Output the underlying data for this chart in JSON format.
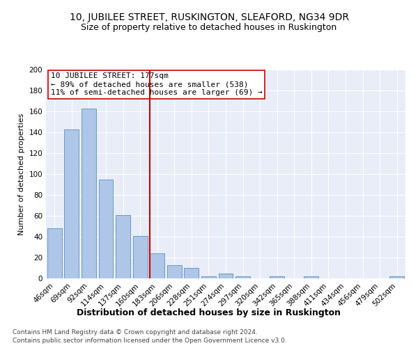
{
  "title": "10, JUBILEE STREET, RUSKINGTON, SLEAFORD, NG34 9DR",
  "subtitle": "Size of property relative to detached houses in Ruskington",
  "xlabel": "Distribution of detached houses by size in Ruskington",
  "ylabel": "Number of detached properties",
  "categories": [
    "46sqm",
    "69sqm",
    "92sqm",
    "114sqm",
    "137sqm",
    "160sqm",
    "183sqm",
    "206sqm",
    "228sqm",
    "251sqm",
    "274sqm",
    "297sqm",
    "320sqm",
    "342sqm",
    "365sqm",
    "388sqm",
    "411sqm",
    "434sqm",
    "456sqm",
    "479sqm",
    "502sqm"
  ],
  "values": [
    48,
    143,
    163,
    95,
    61,
    41,
    24,
    13,
    10,
    2,
    5,
    2,
    0,
    2,
    0,
    2,
    0,
    0,
    0,
    0,
    2
  ],
  "bar_color": "#aec6e8",
  "bar_edge_color": "#5b90c0",
  "vline_color": "#cc0000",
  "annotation_text": "10 JUBILEE STREET: 177sqm\n← 89% of detached houses are smaller (538)\n11% of semi-detached houses are larger (69) →",
  "annotation_box_color": "#ffffff",
  "annotation_box_edge": "#cc0000",
  "ylim": [
    0,
    200
  ],
  "yticks": [
    0,
    20,
    40,
    60,
    80,
    100,
    120,
    140,
    160,
    180,
    200
  ],
  "footer_line1": "Contains HM Land Registry data © Crown copyright and database right 2024.",
  "footer_line2": "Contains public sector information licensed under the Open Government Licence v3.0.",
  "background_color": "#e8edf8",
  "fig_color": "#ffffff",
  "grid_color": "#ffffff",
  "title_fontsize": 10,
  "subtitle_fontsize": 9,
  "xlabel_fontsize": 9,
  "ylabel_fontsize": 8,
  "tick_fontsize": 7.5,
  "annotation_fontsize": 8,
  "footer_fontsize": 6.5
}
